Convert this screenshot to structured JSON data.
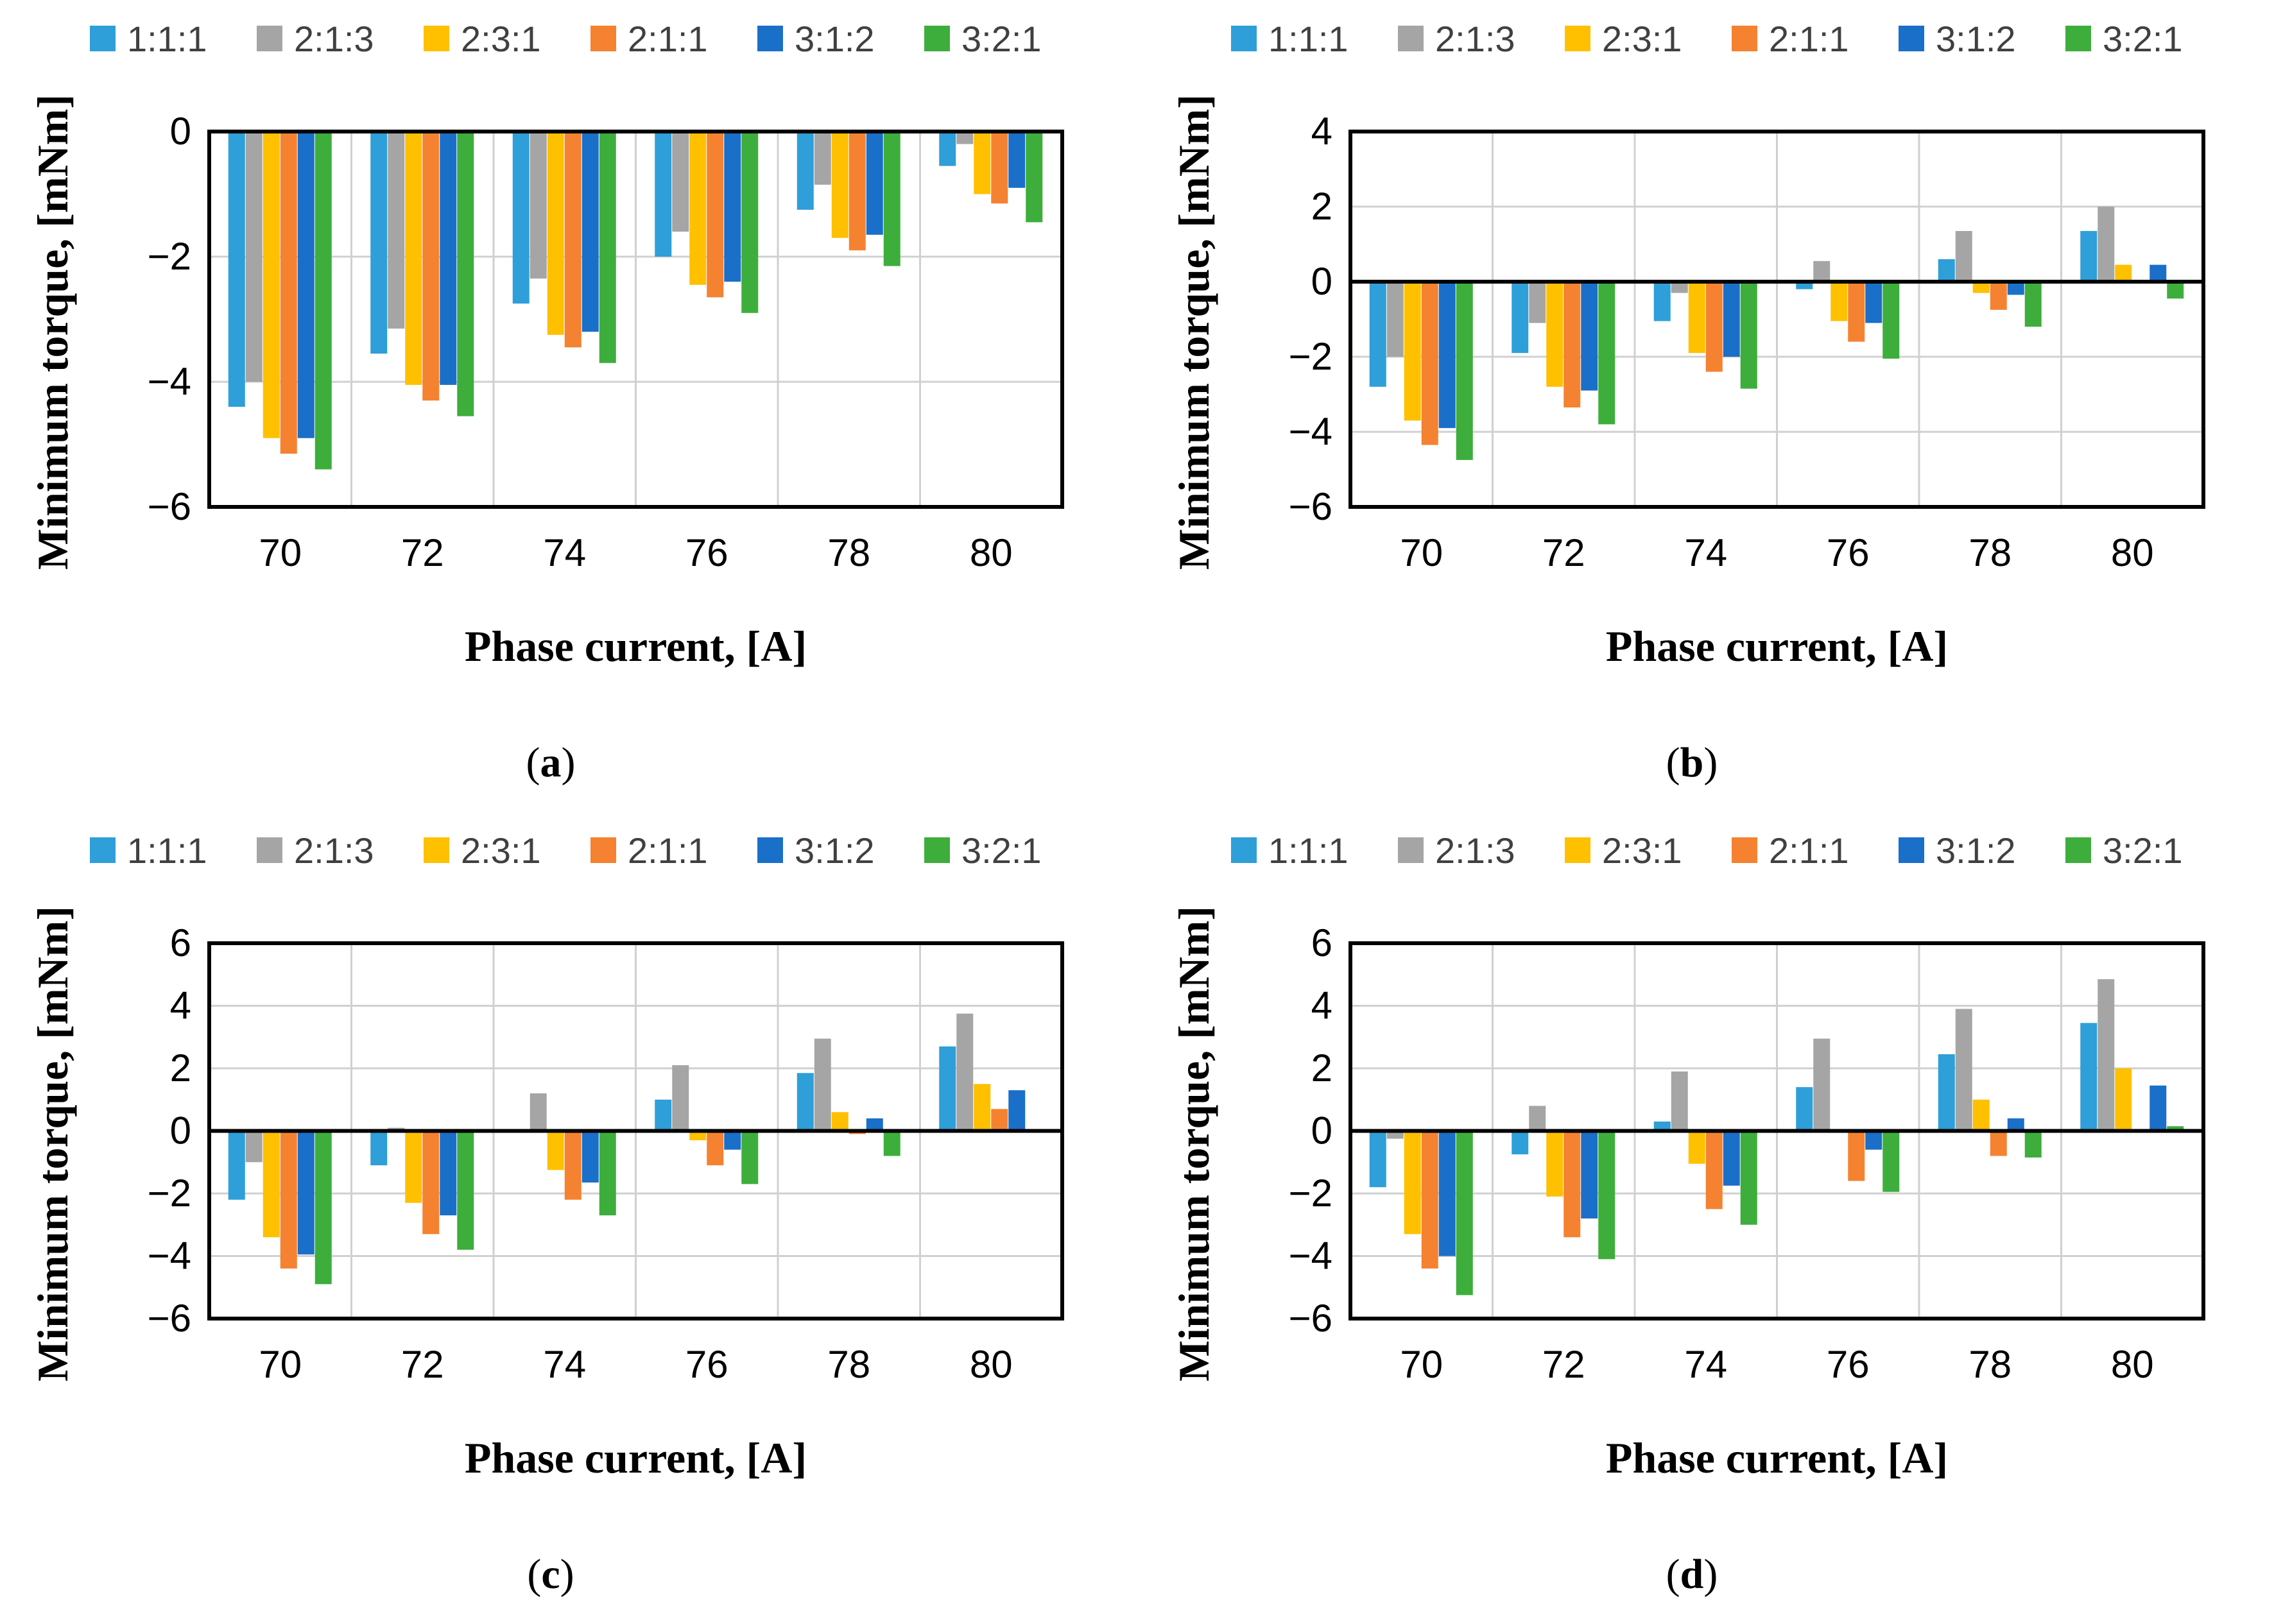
{
  "series_colors": [
    "#2E9FD8",
    "#A5A5A5",
    "#FFC000",
    "#F58231",
    "#1A6FC9",
    "#3DAE3B"
  ],
  "chart_data": [
    {
      "type": "bar",
      "caption_letter": "a",
      "xlabel": "Phase current, [A]",
      "ylabel": "Minimum torque, [mNm]",
      "ylim": [
        -6,
        0
      ],
      "yticks": [
        0,
        -2,
        -4,
        -6
      ],
      "grid": true,
      "legend_position": "top",
      "categories": [
        "70",
        "72",
        "74",
        "76",
        "78",
        "80"
      ],
      "series": [
        {
          "name": "1:1:1",
          "values": [
            -4.4,
            -3.55,
            -2.75,
            -2.0,
            -1.25,
            -0.55
          ]
        },
        {
          "name": "2:1:3",
          "values": [
            -4.0,
            -3.15,
            -2.35,
            -1.6,
            -0.85,
            -0.2
          ]
        },
        {
          "name": "2:3:1",
          "values": [
            -4.9,
            -4.05,
            -3.25,
            -2.45,
            -1.7,
            -1.0
          ]
        },
        {
          "name": "2:1:1",
          "values": [
            -5.15,
            -4.3,
            -3.45,
            -2.65,
            -1.9,
            -1.15
          ]
        },
        {
          "name": "3:1:2",
          "values": [
            -4.9,
            -4.05,
            -3.2,
            -2.4,
            -1.65,
            -0.9
          ]
        },
        {
          "name": "3:2:1",
          "values": [
            -5.4,
            -4.55,
            -3.7,
            -2.9,
            -2.15,
            -1.45
          ]
        }
      ]
    },
    {
      "type": "bar",
      "caption_letter": "b",
      "xlabel": "Phase current, [A]",
      "ylabel": "Minimum torque, [mNm]",
      "ylim": [
        -6,
        4
      ],
      "yticks": [
        4,
        2,
        0,
        -2,
        -4,
        -6
      ],
      "grid": true,
      "legend_position": "top",
      "categories": [
        "70",
        "72",
        "74",
        "76",
        "78",
        "80"
      ],
      "series": [
        {
          "name": "1:1:1",
          "values": [
            -2.8,
            -1.9,
            -1.05,
            -0.2,
            0.6,
            1.35
          ]
        },
        {
          "name": "2:1:3",
          "values": [
            -2.0,
            -1.1,
            -0.3,
            0.55,
            1.35,
            2.0
          ]
        },
        {
          "name": "2:3:1",
          "values": [
            -3.7,
            -2.8,
            -1.9,
            -1.05,
            -0.3,
            0.45
          ]
        },
        {
          "name": "2:1:1",
          "values": [
            -4.35,
            -3.35,
            -2.4,
            -1.6,
            -0.75,
            0.0
          ]
        },
        {
          "name": "3:1:2",
          "values": [
            -3.9,
            -2.9,
            -2.0,
            -1.1,
            -0.35,
            0.45
          ]
        },
        {
          "name": "3:2:1",
          "values": [
            -4.75,
            -3.8,
            -2.85,
            -2.05,
            -1.2,
            -0.45
          ]
        }
      ]
    },
    {
      "type": "bar",
      "caption_letter": "c",
      "xlabel": "Phase current, [A]",
      "ylabel": "Minimum torque, [mNm]",
      "ylim": [
        -6,
        6
      ],
      "yticks": [
        6,
        4,
        2,
        0,
        -2,
        -4,
        -6
      ],
      "grid": true,
      "legend_position": "top",
      "categories": [
        "70",
        "72",
        "74",
        "76",
        "78",
        "80"
      ],
      "series": [
        {
          "name": "1:1:1",
          "values": [
            -2.2,
            -1.1,
            0.0,
            1.0,
            1.85,
            2.7
          ]
        },
        {
          "name": "2:1:3",
          "values": [
            -1.0,
            0.1,
            1.2,
            2.1,
            2.95,
            3.75
          ]
        },
        {
          "name": "2:3:1",
          "values": [
            -3.4,
            -2.3,
            -1.25,
            -0.3,
            0.6,
            1.5
          ]
        },
        {
          "name": "2:1:1",
          "values": [
            -4.4,
            -3.3,
            -2.2,
            -1.1,
            -0.1,
            0.7
          ]
        },
        {
          "name": "3:1:2",
          "values": [
            -3.95,
            -2.7,
            -1.65,
            -0.6,
            0.4,
            1.3
          ]
        },
        {
          "name": "3:2:1",
          "values": [
            -4.9,
            -3.8,
            -2.7,
            -1.7,
            -0.8,
            0.05
          ]
        }
      ]
    },
    {
      "type": "bar",
      "caption_letter": "d",
      "xlabel": "Phase current, [A]",
      "ylabel": "Minimum torque, [mNm]",
      "ylim": [
        -6,
        6
      ],
      "yticks": [
        6,
        4,
        2,
        0,
        -2,
        -4,
        -6
      ],
      "grid": true,
      "legend_position": "top",
      "categories": [
        "70",
        "72",
        "74",
        "76",
        "78",
        "80"
      ],
      "series": [
        {
          "name": "1:1:1",
          "values": [
            -1.8,
            -0.75,
            0.3,
            1.4,
            2.45,
            3.45
          ]
        },
        {
          "name": "2:1:3",
          "values": [
            -0.25,
            0.8,
            1.9,
            2.95,
            3.9,
            4.85
          ]
        },
        {
          "name": "2:3:1",
          "values": [
            -3.3,
            -2.1,
            -1.05,
            -0.05,
            1.0,
            2.0
          ]
        },
        {
          "name": "2:1:1",
          "values": [
            -4.4,
            -3.4,
            -2.5,
            -1.6,
            -0.8,
            0.0
          ]
        },
        {
          "name": "3:1:2",
          "values": [
            -4.0,
            -2.8,
            -1.75,
            -0.6,
            0.4,
            1.45
          ]
        },
        {
          "name": "3:2:1",
          "values": [
            -5.25,
            -4.1,
            -3.0,
            -1.95,
            -0.85,
            0.15
          ]
        }
      ]
    }
  ]
}
